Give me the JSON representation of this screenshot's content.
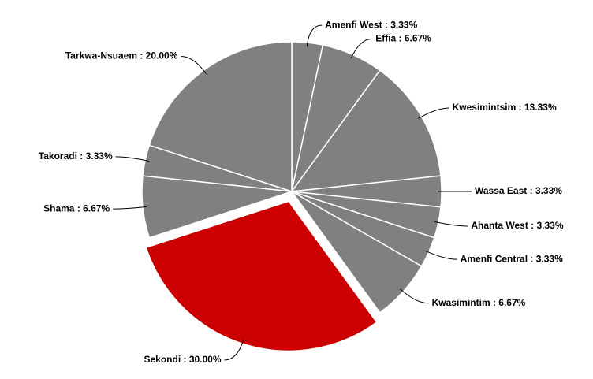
{
  "chart_data": {
    "type": "pie",
    "values": [
      3.33,
      6.67,
      13.33,
      3.33,
      3.33,
      3.33,
      6.67,
      30.0,
      6.67,
      3.33,
      20.0
    ],
    "value_labels": [
      "Amenfi West : 3.33%",
      "Effia : 6.67%",
      "Kwesimintsim : 13.33%",
      "Wassa East : 3.33%",
      "Ahanta West : 3.33%",
      "Amenfi Central : 3.33%",
      "Kwasimintim : 6.67%",
      "Sekondi : 30.00%",
      "Shama : 6.67%",
      "Takoradi : 3.33%",
      "Tarkwa-Nsuaem : 20.00%"
    ],
    "colors": [
      "#808080",
      "#808080",
      "#808080",
      "#808080",
      "#808080",
      "#808080",
      "#808080",
      "#cc0000",
      "#808080",
      "#808080",
      "#808080"
    ],
    "exploded": [
      7
    ]
  }
}
